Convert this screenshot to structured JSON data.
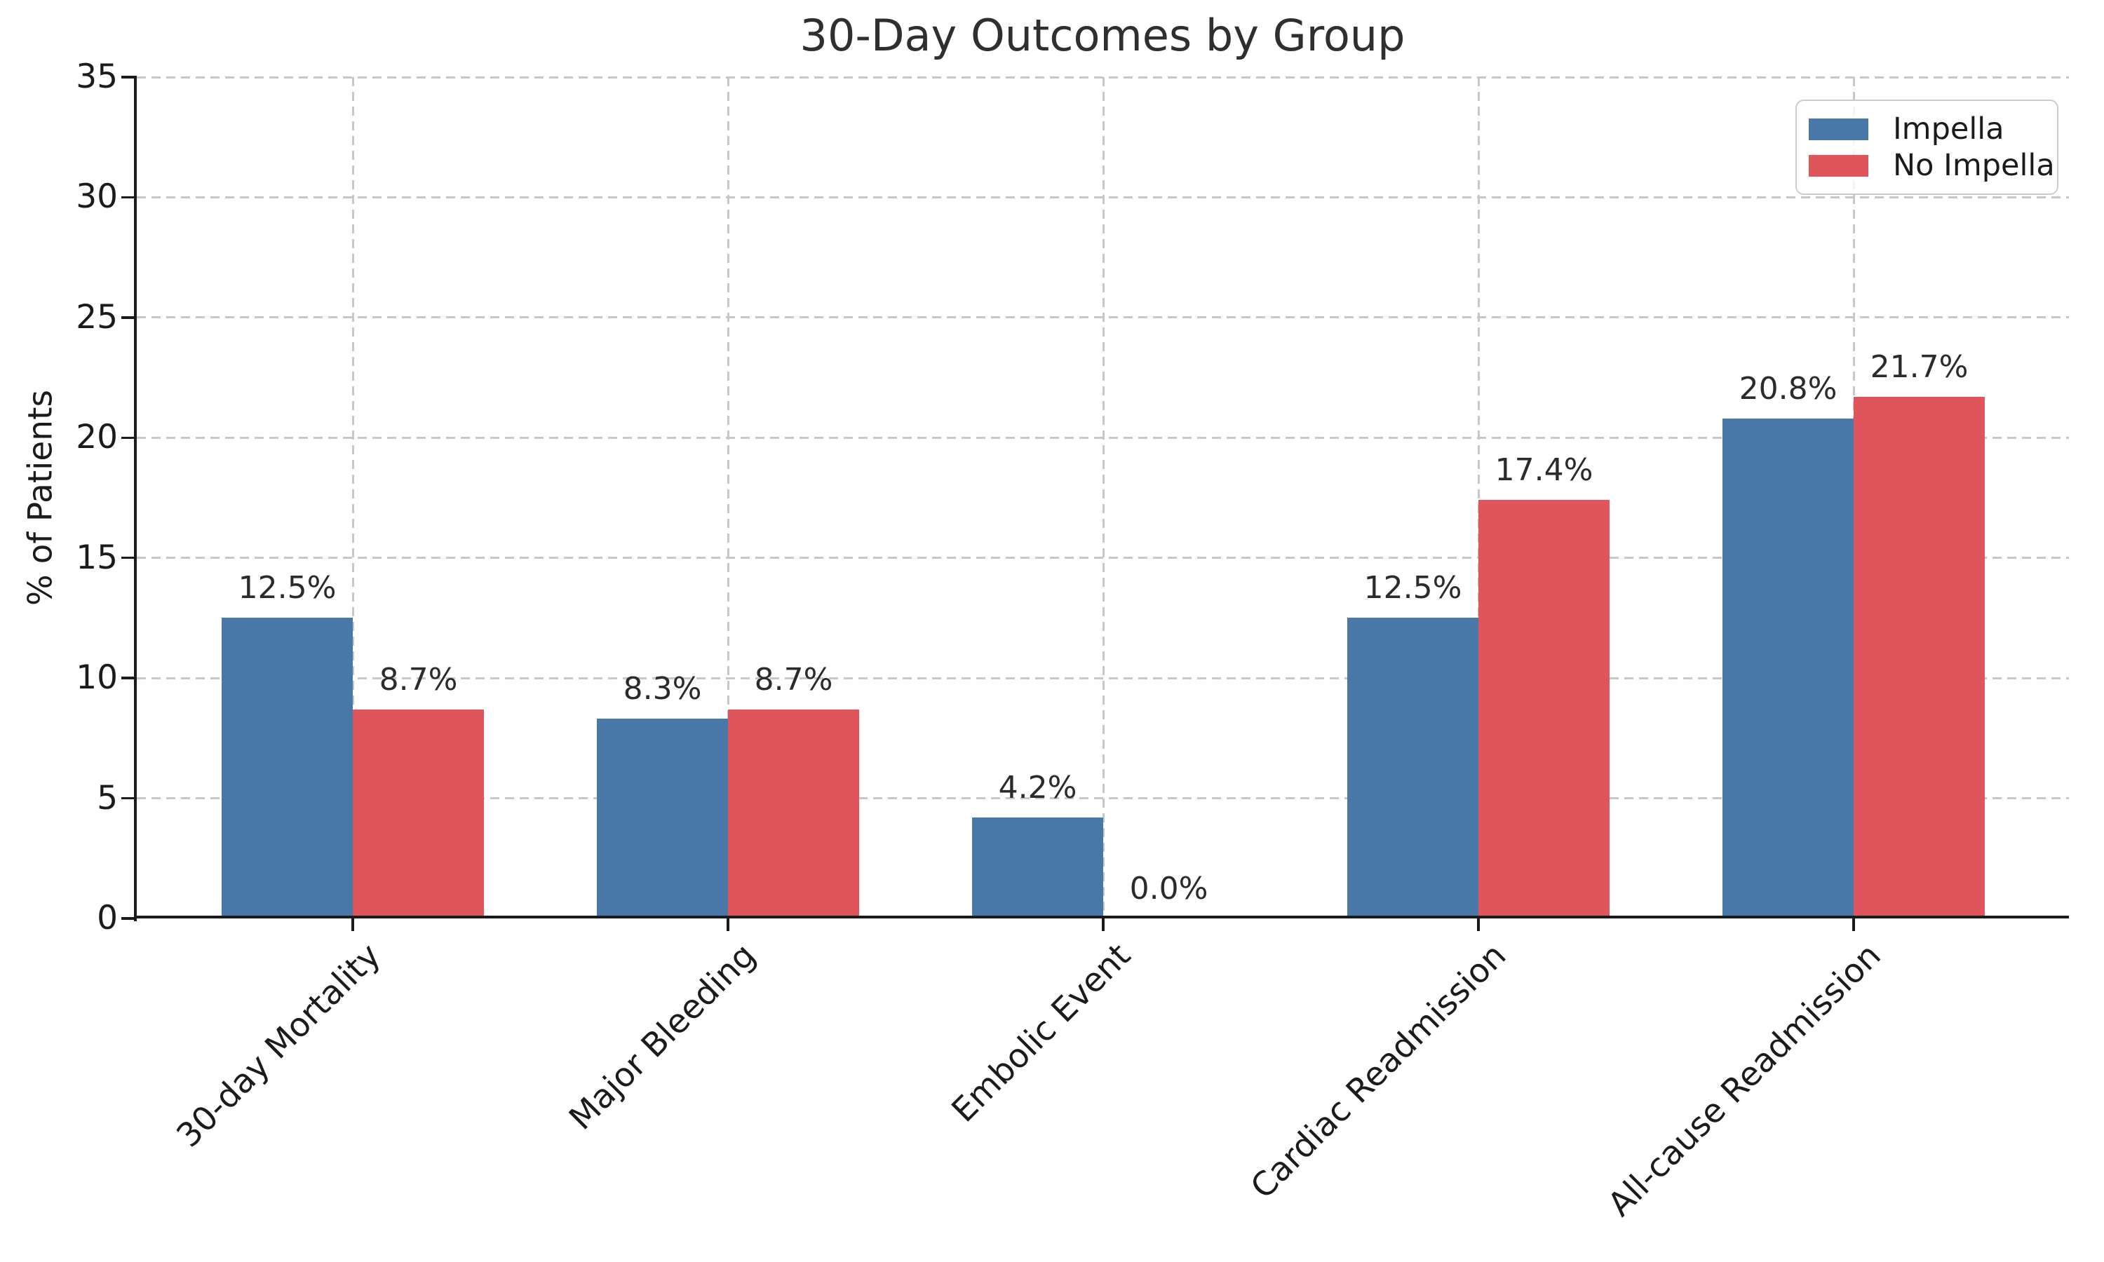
{
  "chart_data": {
    "type": "bar",
    "title": "30-Day Outcomes by Group",
    "ylabel": "% of Patients",
    "xlabel": "",
    "ylim": [
      0,
      35
    ],
    "yticks": [
      0,
      5,
      10,
      15,
      20,
      25,
      30,
      35
    ],
    "grid": true,
    "grid_style": "dashed",
    "legend_position": "upper right",
    "categories": [
      "30-day Mortality",
      "Major Bleeding",
      "Embolic Event",
      "Cardiac Readmission",
      "All-cause Readmission"
    ],
    "series": [
      {
        "name": "Impella",
        "color": "#4878a8",
        "values": [
          12.5,
          8.3,
          4.2,
          12.5,
          20.8
        ],
        "value_labels": [
          "12.5%",
          "8.3%",
          "4.2%",
          "12.5%",
          "20.8%"
        ]
      },
      {
        "name": "No Impella",
        "color": "#e0545c",
        "values": [
          8.7,
          8.7,
          0.0,
          17.4,
          21.7
        ],
        "value_labels": [
          "8.7%",
          "8.7%",
          "0.0%",
          "17.4%",
          "21.7%"
        ]
      }
    ]
  }
}
